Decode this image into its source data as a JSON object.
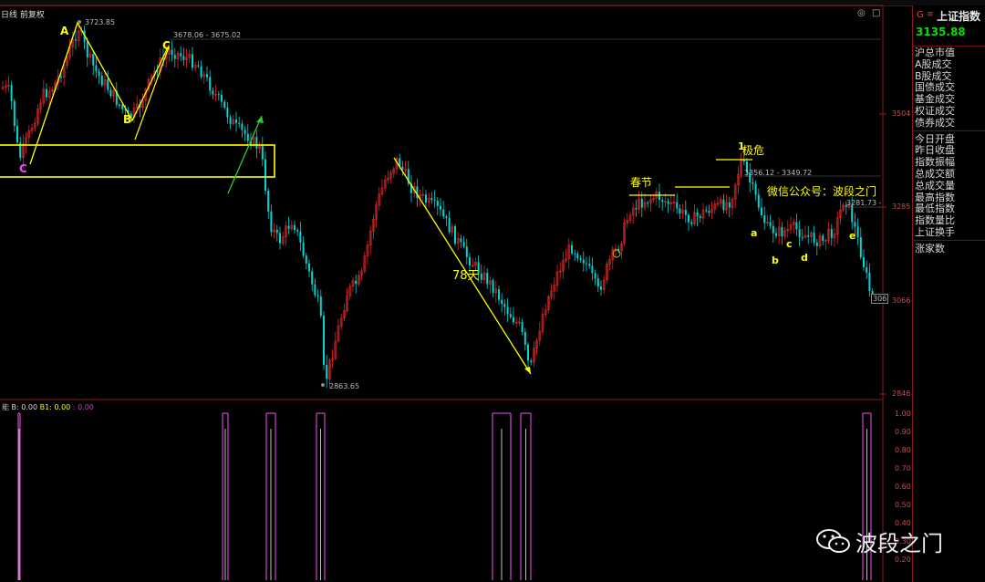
{
  "colors": {
    "up": "#e02828",
    "down": "#00d6d6",
    "annot": "#ffff00",
    "magenta": "#c040c0",
    "grid": "#8a1a1a",
    "wave": "#e8e830",
    "green": "#2ec82e"
  },
  "header": {
    "period_label": "日线 前复权"
  },
  "price_levels": {
    "high": "3723.85",
    "top_range": "3678.06 - 3675.02",
    "low": "2863.65",
    "mid_range": "3356.12 - 3349.72",
    "right_range": "3281.73 -"
  },
  "y_axis_main": [
    "3504",
    "3285",
    "3066",
    "2846"
  ],
  "right_marker": "306",
  "wave_labels": {
    "A": "A",
    "B": "B",
    "C1": "C",
    "C2": "C",
    "a": "a",
    "b": "b",
    "c": "c",
    "d": "d",
    "e": "e",
    "one": "1"
  },
  "annotations": {
    "days": "78天",
    "spring": "春节",
    "crisis": "极危",
    "wechat": "微信公众号：波段之门"
  },
  "indicator": {
    "legend_prefix": "能",
    "legend_b": "B: 0.00",
    "legend_b1": "B1: 0.00",
    "legend_extra": ": 0.00",
    "y_labels": [
      "1.00",
      "0.90",
      "0.80",
      "0.70",
      "0.60",
      "0.50",
      "0.40",
      "0.30",
      "0.20"
    ]
  },
  "panel": {
    "g": "G",
    "eq": "≡",
    "name": "上证指数",
    "price": "3135.88",
    "rows1": [
      "沪总市值",
      "A股成交",
      "B股成交",
      "国债成交",
      "基金成交",
      "权证成交",
      "债券成交"
    ],
    "rows2": [
      "今日开盘",
      "昨日收盘",
      "指数振幅",
      "总成交额",
      "总成交量",
      "最高指数",
      "最低指数",
      "指数量比",
      "上证换手"
    ],
    "rows3": [
      "涨家数"
    ]
  },
  "watermark": {
    "text": "波段之门",
    "icon": "wechat-icon"
  },
  "icons": {
    "restore": "restore-icon",
    "maximize": "maximize-icon"
  }
}
